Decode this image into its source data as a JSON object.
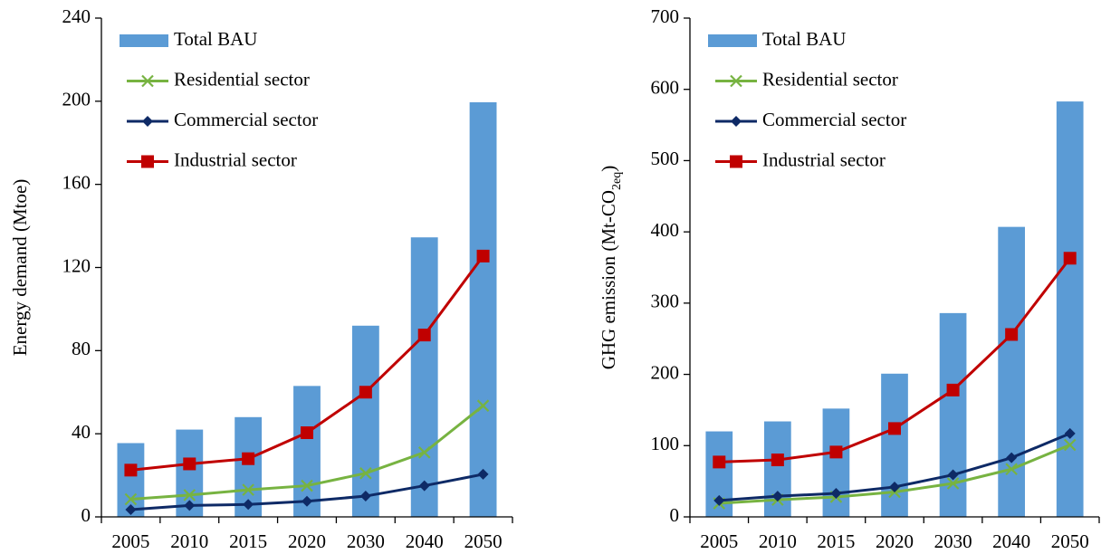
{
  "chart_data": [
    {
      "type": "bar",
      "ylabel": [
        {
          "text": "Energy demand (Mtoe)"
        }
      ],
      "categories": [
        "2005",
        "2010",
        "2015",
        "2020",
        "2030",
        "2040",
        "2050"
      ],
      "ylim": [
        0,
        240
      ],
      "yticks": [
        0,
        40,
        80,
        120,
        160,
        200,
        240
      ],
      "series": [
        {
          "name": "Total BAU",
          "type": "bar",
          "color": "#5b9bd5",
          "values": [
            35.5,
            42,
            48,
            63,
            92,
            134.5,
            199.5
          ]
        },
        {
          "name": "Residential sector",
          "type": "line",
          "marker": "x",
          "color": "#77b341",
          "values": [
            8.5,
            10.5,
            13,
            15,
            21,
            31,
            53.5
          ]
        },
        {
          "name": "Commercial sector",
          "type": "line",
          "marker": "diamond",
          "color": "#0e2a66",
          "values": [
            3.5,
            5.5,
            6,
            7.5,
            10,
            15,
            20.5
          ]
        },
        {
          "name": "Industrial sector",
          "type": "line",
          "marker": "square",
          "color": "#c00000",
          "values": [
            22.5,
            25.5,
            28,
            40.5,
            60,
            87.5,
            125.5
          ]
        }
      ]
    },
    {
      "type": "bar",
      "ylabel": [
        {
          "text": "GHG emission (Mt-CO"
        },
        {
          "text": "2eq",
          "sub": true
        },
        {
          "text": ")"
        }
      ],
      "categories": [
        "2005",
        "2010",
        "2015",
        "2020",
        "2030",
        "2040",
        "2050"
      ],
      "ylim": [
        0,
        700
      ],
      "yticks": [
        0,
        100,
        200,
        300,
        400,
        500,
        600,
        700
      ],
      "series": [
        {
          "name": "Total BAU",
          "type": "bar",
          "color": "#5b9bd5",
          "values": [
            120,
            134,
            152,
            201,
            286,
            407,
            583
          ]
        },
        {
          "name": "Residential sector",
          "type": "line",
          "marker": "x",
          "color": "#77b341",
          "values": [
            19,
            24,
            28,
            35,
            47,
            67,
            101
          ]
        },
        {
          "name": "Commercial sector",
          "type": "line",
          "marker": "diamond",
          "color": "#0e2a66",
          "values": [
            23,
            29,
            33,
            42,
            59,
            83,
            117
          ]
        },
        {
          "name": "Industrial sector",
          "type": "line",
          "marker": "square",
          "color": "#c00000",
          "values": [
            77,
            80,
            91,
            124,
            178,
            256,
            363
          ]
        }
      ]
    }
  ]
}
